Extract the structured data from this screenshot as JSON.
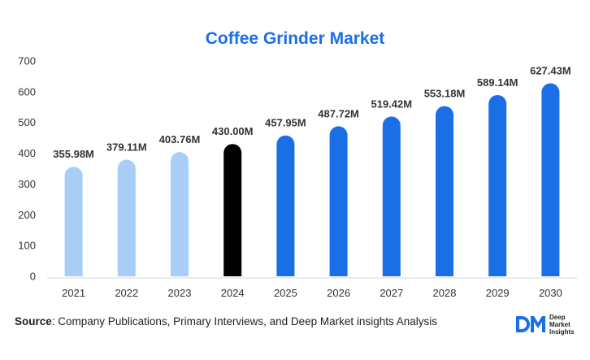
{
  "chart_data": {
    "type": "bar",
    "title": "Coffee Grinder Market",
    "categories": [
      "2021",
      "2022",
      "2023",
      "2024",
      "2025",
      "2026",
      "2027",
      "2028",
      "2029",
      "2030"
    ],
    "values": [
      355.98,
      379.11,
      403.76,
      430.0,
      457.95,
      487.72,
      519.42,
      553.18,
      589.14,
      627.43
    ],
    "labels": [
      "355.98M",
      "379.11M",
      "403.76M",
      "430.00M",
      "457.95M",
      "487.72M",
      "519.42M",
      "553.18M",
      "589.14M",
      "627.43M"
    ],
    "colors": [
      "#a8cef8",
      "#a8cef8",
      "#a8cef8",
      "#000000",
      "#1a6fe6",
      "#1a6fe6",
      "#1a6fe6",
      "#1a6fe6",
      "#1a6fe6",
      "#1a6fe6"
    ],
    "yticks": [
      "0",
      "100",
      "200",
      "300",
      "400",
      "500",
      "600",
      "700"
    ],
    "ylim": [
      0,
      700
    ],
    "xlabel": "",
    "ylabel": "",
    "grid": false,
    "legend": "none"
  },
  "source": {
    "label": "Source",
    "text": ": Company Publications, Primary Interviews, and Deep Market insights Analysis"
  },
  "logo": {
    "mark": "DM",
    "line1": "Deep",
    "line2": "Market",
    "line3": "Insights"
  },
  "colors": {
    "title": "#1a6fe6",
    "history": "#a8cef8",
    "base_year": "#000000",
    "forecast": "#1a6fe6"
  }
}
